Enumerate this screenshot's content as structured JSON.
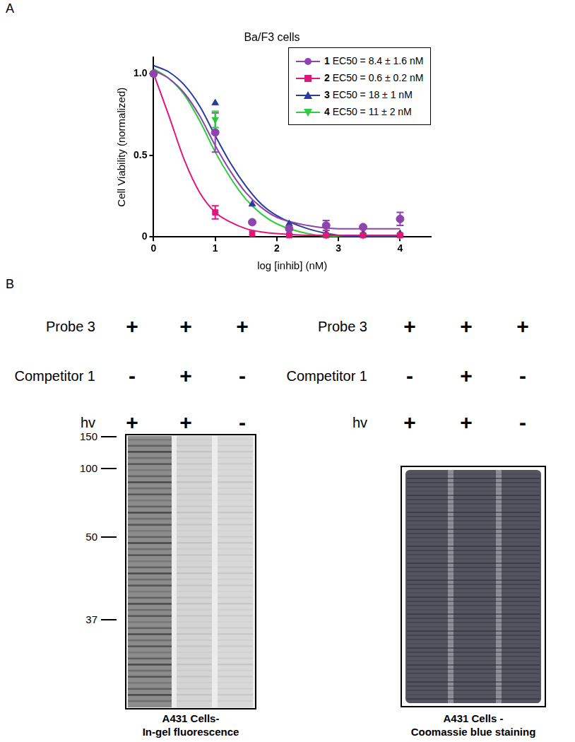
{
  "panel_labels": [
    "A",
    "B"
  ],
  "chart_data": {
    "type": "scatter",
    "title": "Ba/F3 cells",
    "x_label": "log [inhib] (nM)",
    "y_label": "Cell Viability (normalized)",
    "x": [
      0,
      1,
      1.6,
      2.2,
      2.8,
      3.4,
      4
    ],
    "fit_x": [
      0,
      0.25,
      0.5,
      0.75,
      1,
      1.25,
      1.5,
      1.75,
      2,
      2.5,
      3,
      3.5,
      4
    ],
    "series": [
      {
        "name": "1 EC50 = 8.4 ± 1.6 nM",
        "color": "#8e44ad",
        "marker": "circle",
        "values": [
          1.0,
          0.64,
          0.09,
          0.05,
          0.07,
          0.06,
          0.11
        ],
        "errors": [
          null,
          0.12,
          null,
          null,
          0.03,
          null,
          0.04
        ],
        "fit_values": [
          1.02,
          0.97,
          0.88,
          0.74,
          0.56,
          0.4,
          0.27,
          0.18,
          0.12,
          0.07,
          0.05,
          0.05,
          0.05
        ]
      },
      {
        "name": "2 EC50 = 0.6 ± 0.2 nM",
        "color": "#e0177a",
        "marker": "square",
        "values": [
          1.0,
          0.15,
          0.02,
          0.01,
          0.01,
          0.01,
          0.01
        ],
        "errors": [
          null,
          0.04,
          null,
          null,
          null,
          null,
          null
        ],
        "fit_values": [
          1.0,
          0.74,
          0.47,
          0.27,
          0.15,
          0.09,
          0.05,
          0.03,
          0.02,
          0.01,
          0.01,
          0.01,
          0.01
        ]
      },
      {
        "name": "3 EC50 = 18 ± 1 nM",
        "color": "#2a3b9e",
        "marker": "triangle",
        "values": [
          1.0,
          0.82,
          0.2,
          0.08,
          0.02,
          0.02,
          0.02
        ],
        "errors": [
          null,
          null,
          null,
          null,
          null,
          null,
          null
        ],
        "fit_values": [
          1.05,
          1.01,
          0.93,
          0.8,
          0.62,
          0.45,
          0.31,
          0.2,
          0.13,
          0.05,
          0.01,
          0.0,
          0.0
        ]
      },
      {
        "name": "4 EC50 = 11 ± 2 nM",
        "color": "#2ecc40",
        "marker": "triangle_down",
        "values": [
          1.0,
          0.72,
          0.09,
          0.04,
          0.01,
          0.01,
          0.01
        ],
        "errors": [
          null,
          0.05,
          null,
          null,
          null,
          null,
          null
        ],
        "fit_values": [
          1.03,
          0.97,
          0.87,
          0.71,
          0.52,
          0.36,
          0.23,
          0.14,
          0.08,
          0.02,
          0.0,
          0.0,
          0.0
        ]
      }
    ],
    "xlim": [
      0,
      4.5
    ],
    "xticks": [
      0,
      1,
      2,
      3,
      4
    ],
    "ylim": [
      0,
      1.1
    ],
    "yticks": [
      0,
      0.5,
      {
        "value": 1,
        "label": "1.0"
      }
    ],
    "grid": false,
    "legend": "upper right"
  },
  "panel_b": {
    "conditions": [
      {
        "label": "Probe 3",
        "signs": [
          "+",
          "+",
          "+"
        ]
      },
      {
        "label": "Competitor 1",
        "signs": [
          "-",
          "+",
          "-"
        ]
      },
      {
        "label": "hv",
        "signs": [
          "+",
          "+",
          "-"
        ]
      }
    ],
    "gels": [
      {
        "stain": "fluorescence",
        "caption": [
          "A431 Cells-",
          "In-gel fluorescence"
        ],
        "markers": [
          150,
          100,
          50,
          37
        ]
      },
      {
        "stain": "coomassie",
        "caption": [
          "A431 Cells -",
          "Coomassie blue staining"
        ]
      }
    ]
  }
}
